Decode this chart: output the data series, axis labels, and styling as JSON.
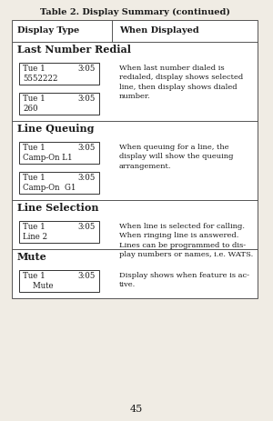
{
  "title": "Table 2. Display Summary (continued)",
  "page_number": "45",
  "bg_color": "#f0ece4",
  "table_bg": "#ffffff",
  "header_col1": "Display Type",
  "header_col2": "When Displayed",
  "sections": [
    {
      "section_title": "Last Number Redial",
      "displays": [
        {
          "line1": "Tue 1",
          "time": "3:05",
          "line2": "5552222"
        },
        {
          "line1": "Tue 1",
          "time": "3:05",
          "line2": "260"
        }
      ],
      "description": "When last number dialed is\nredialed, display shows selected\nline, then display shows dialed\nnumber.",
      "desc_with_first_only": true
    },
    {
      "section_title": "Line Queuing",
      "displays": [
        {
          "line1": "Tue 1",
          "time": "3:05",
          "line2": "Camp-On L1"
        },
        {
          "line1": "Tue 1",
          "time": "3:05",
          "line2": "Camp-On  G1"
        }
      ],
      "description": "When queuing for a line, the\ndisplay will show the queuing\narrangement.",
      "desc_with_first_only": true
    },
    {
      "section_title": "Line Selection",
      "displays": [
        {
          "line1": "Tue 1",
          "time": "3:05",
          "line2": "Line 2"
        }
      ],
      "description": "When line is selected for calling.\nWhen ringing line is answered.\nLines can be programmed to dis-\nplay numbers or names, i.e. WATS.",
      "desc_with_first_only": true
    },
    {
      "section_title": "Mute",
      "displays": [
        {
          "line1": "Tue 1",
          "time": "3:05",
          "line2": "    Mute"
        }
      ],
      "description": "Display shows when feature is ac-\ntive.",
      "desc_with_first_only": true
    }
  ]
}
